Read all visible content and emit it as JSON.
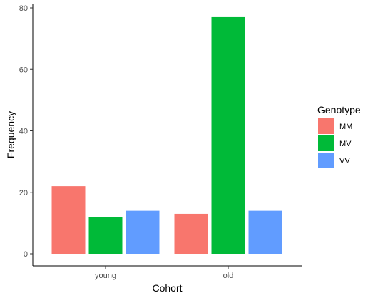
{
  "chart_data": {
    "type": "bar",
    "xlabel": "Cohort",
    "ylabel": "Frequency",
    "categories": [
      "young",
      "old"
    ],
    "series": [
      {
        "name": "MM",
        "color": "#F8766D",
        "values": [
          22,
          13
        ]
      },
      {
        "name": "MV",
        "color": "#00BA38",
        "values": [
          12,
          77
        ]
      },
      {
        "name": "VV",
        "color": "#619CFF",
        "values": [
          14,
          14
        ]
      }
    ],
    "ylim": [
      0,
      80
    ],
    "yticks": [
      0,
      20,
      40,
      60,
      80
    ],
    "legend": {
      "title": "Genotype",
      "placement": "right"
    },
    "grid": false
  }
}
